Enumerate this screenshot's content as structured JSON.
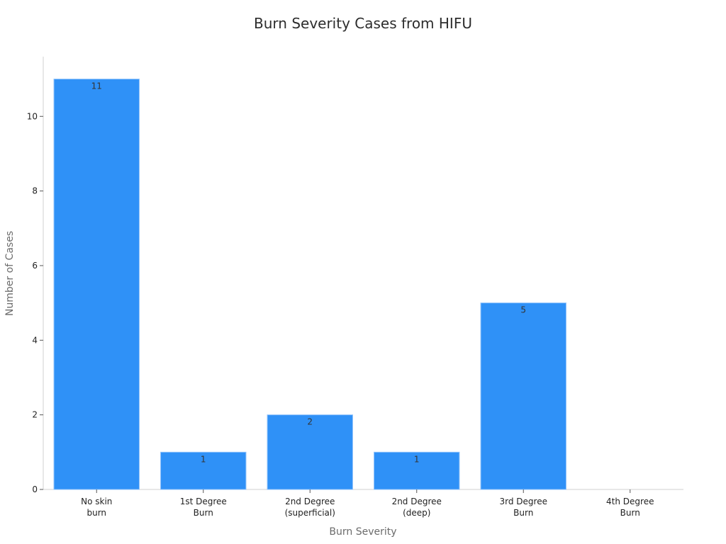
{
  "chart_data": {
    "type": "bar",
    "title": "Burn Severity Cases from HIFU",
    "xlabel": "Burn Severity",
    "ylabel": "Number of Cases",
    "categories": [
      [
        "No skin",
        "burn"
      ],
      [
        "1st Degree",
        "Burn"
      ],
      [
        "2nd Degree",
        "(superficial)"
      ],
      [
        "2nd Degree",
        "(deep)"
      ],
      [
        "3rd Degree",
        "Burn"
      ],
      [
        "4th Degree",
        "Burn"
      ]
    ],
    "values": [
      11,
      1,
      2,
      1,
      5,
      0
    ],
    "data_labels": [
      "11",
      "1",
      "2",
      "1",
      "5",
      ""
    ],
    "ylim": [
      0,
      11.6
    ],
    "yticks": [
      0,
      2,
      4,
      6,
      8,
      10
    ],
    "ytick_labels": [
      "0",
      "2",
      "4",
      "6",
      "8",
      "10"
    ],
    "grid": false,
    "legend": false,
    "colors": {
      "bar": "#2f91f7",
      "bar_edge": "#8fc2fb",
      "axis": "#d0d0d0",
      "tick": "#555555"
    }
  }
}
